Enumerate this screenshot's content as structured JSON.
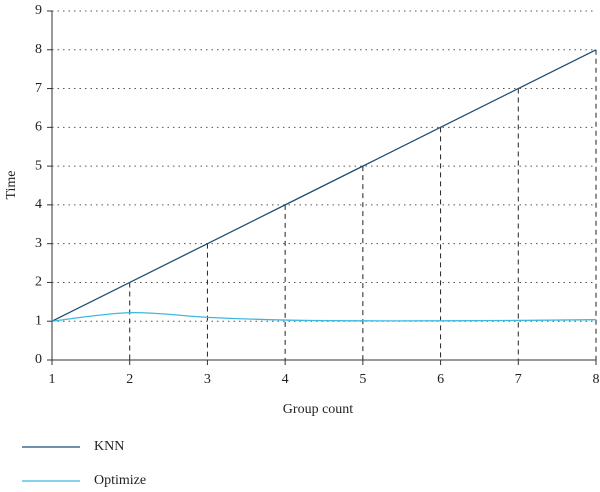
{
  "chart_data": {
    "type": "line",
    "x": [
      1,
      2,
      3,
      4,
      5,
      6,
      7,
      8
    ],
    "series": [
      {
        "name": "KNN",
        "color": "#1d4f73",
        "values": [
          1,
          2,
          3,
          4,
          5,
          6,
          7,
          8
        ]
      },
      {
        "name": "Optimize",
        "color": "#3fb8e0",
        "values": [
          1,
          1.22,
          1.1,
          1.03,
          1.01,
          1.01,
          1.02,
          1.04
        ]
      }
    ],
    "xlabel": "Group count",
    "ylabel": "Time",
    "xlim": [
      1,
      8
    ],
    "xticks": [
      1,
      2,
      3,
      4,
      5,
      6,
      7,
      8
    ],
    "ylim": [
      0,
      9
    ],
    "yticks": [
      0,
      1,
      2,
      3,
      4,
      5,
      6,
      7,
      8,
      9
    ],
    "grid": true,
    "legend": "bottom-left"
  }
}
